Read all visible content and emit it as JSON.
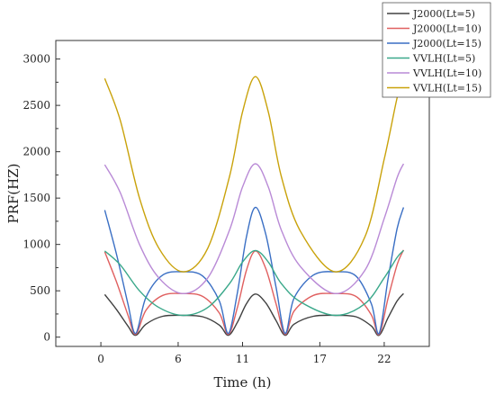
{
  "chart_data": {
    "type": "line",
    "title": "",
    "xlabel": "Time (h)",
    "ylabel": "PRF(HZ)",
    "xlim": [
      -3.5,
      25.5
    ],
    "ylim": [
      -100,
      3200
    ],
    "xticks": [
      0,
      6,
      11,
      17,
      22
    ],
    "xtick_labels": [
      "0",
      "6",
      "11",
      "17",
      "22"
    ],
    "yticks": [
      0,
      500,
      1000,
      1500,
      2000,
      2500,
      3000
    ],
    "ytick_labels": [
      "0",
      "500",
      "1000",
      "1500",
      "2000",
      "2500",
      "3000"
    ],
    "grid": false,
    "legend_position": "top-right",
    "series": [
      {
        "name": "J2000(Lt=5)",
        "color": "#404040",
        "x": [
          0.3,
          1.2,
          2.1,
          2.7,
          3.5,
          4.8,
          6.4,
          7.9,
          9.2,
          9.9,
          10.6,
          11.3,
          12.0,
          12.8,
          13.6,
          14.3,
          15.0,
          16.5,
          18.2,
          19.8,
          21.0,
          21.6,
          22.3,
          23.0,
          23.5
        ],
        "y": [
          460,
          300,
          120,
          20,
          140,
          225,
          235,
          220,
          130,
          20,
          160,
          360,
          465,
          370,
          180,
          20,
          140,
          225,
          235,
          220,
          120,
          20,
          210,
          390,
          470
        ]
      },
      {
        "name": "J2000(Lt=10)",
        "color": "#e06060",
        "x": [
          0.3,
          1.2,
          2.1,
          2.7,
          3.5,
          4.8,
          6.4,
          7.9,
          9.2,
          9.9,
          10.6,
          11.3,
          12.0,
          12.8,
          13.6,
          14.3,
          15.0,
          16.5,
          18.2,
          19.8,
          21.0,
          21.6,
          22.3,
          23.0,
          23.5
        ],
        "y": [
          920,
          600,
          240,
          30,
          290,
          450,
          470,
          440,
          260,
          30,
          320,
          720,
          930,
          740,
          360,
          30,
          280,
          450,
          470,
          440,
          240,
          30,
          420,
          780,
          940
        ]
      },
      {
        "name": "J2000(Lt=15)",
        "color": "#3a6fc4",
        "x": [
          0.3,
          1.2,
          2.1,
          2.7,
          3.5,
          4.8,
          6.4,
          7.9,
          9.2,
          9.9,
          10.6,
          11.3,
          12.0,
          12.8,
          13.6,
          14.3,
          15.0,
          16.5,
          18.2,
          19.8,
          21.0,
          21.6,
          22.3,
          23.0,
          23.5
        ],
        "y": [
          1370,
          900,
          360,
          40,
          430,
          670,
          705,
          660,
          390,
          40,
          480,
          1080,
          1400,
          1110,
          540,
          40,
          420,
          670,
          705,
          660,
          360,
          40,
          630,
          1170,
          1400
        ]
      },
      {
        "name": "VVLH(Lt=5)",
        "color": "#3aa88a",
        "x": [
          0.3,
          1.5,
          3.0,
          4.5,
          6.4,
          8.3,
          10.0,
          11.0,
          12.0,
          13.0,
          14.0,
          15.5,
          18.2,
          20.5,
          22.0,
          23.0,
          23.5
        ],
        "y": [
          930,
          780,
          500,
          320,
          235,
          320,
          580,
          810,
          935,
          810,
          580,
          380,
          235,
          360,
          640,
          860,
          935
        ]
      },
      {
        "name": "VVLH(Lt=10)",
        "color": "#b98ad6",
        "x": [
          0.3,
          1.5,
          3.0,
          4.5,
          6.4,
          8.3,
          10.0,
          11.0,
          12.0,
          13.0,
          14.0,
          15.5,
          18.2,
          20.5,
          22.0,
          23.0,
          23.5
        ],
        "y": [
          1860,
          1560,
          1000,
          640,
          470,
          640,
          1160,
          1620,
          1870,
          1620,
          1160,
          760,
          470,
          720,
          1280,
          1720,
          1870
        ]
      },
      {
        "name": "VVLH(Lt=15)",
        "color": "#c9a20a",
        "x": [
          0.3,
          1.5,
          3.0,
          4.5,
          6.4,
          8.3,
          10.0,
          11.0,
          12.0,
          13.0,
          14.0,
          15.5,
          18.2,
          20.5,
          22.0,
          23.0,
          23.5
        ],
        "y": [
          2790,
          2340,
          1500,
          960,
          705,
          960,
          1740,
          2430,
          2810,
          2430,
          1740,
          1140,
          705,
          1080,
          1920,
          2580,
          2810
        ]
      }
    ]
  }
}
